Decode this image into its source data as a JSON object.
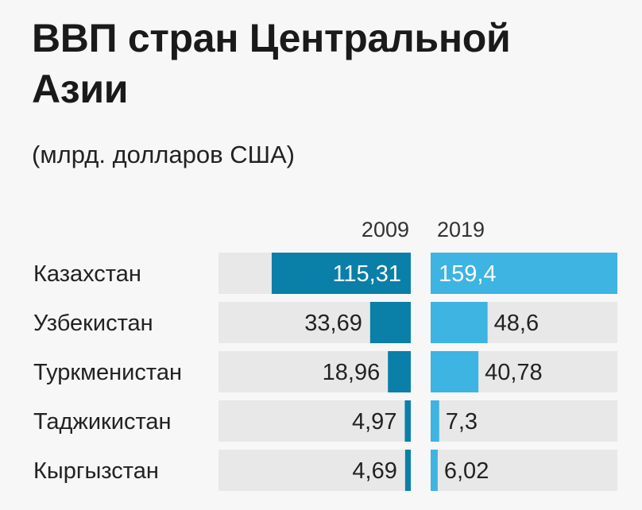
{
  "chart_data": {
    "type": "bar",
    "title": "ВВП стран Центральной Азии",
    "subtitle": "(млрд. долларов США)",
    "categories": [
      "Казахстан",
      "Узбекистан",
      "Туркменистан",
      "Таджикистан",
      "Кыргызстан"
    ],
    "series": [
      {
        "name": "2009",
        "values": [
          115.31,
          33.69,
          18.96,
          4.97,
          4.69
        ],
        "labels": [
          "115,31",
          "33,69",
          "18,96",
          "4,97",
          "4,69"
        ],
        "color": "#0a7fa8"
      },
      {
        "name": "2019",
        "values": [
          159.4,
          48.6,
          40.78,
          7.3,
          6.02
        ],
        "labels": [
          "159,4",
          "48,6",
          "40,78",
          "7,3",
          "6,02"
        ],
        "color": "#3db4e2"
      }
    ],
    "xlim": [
      0,
      159.4
    ],
    "background_bar_color": "#e8e8e8"
  }
}
